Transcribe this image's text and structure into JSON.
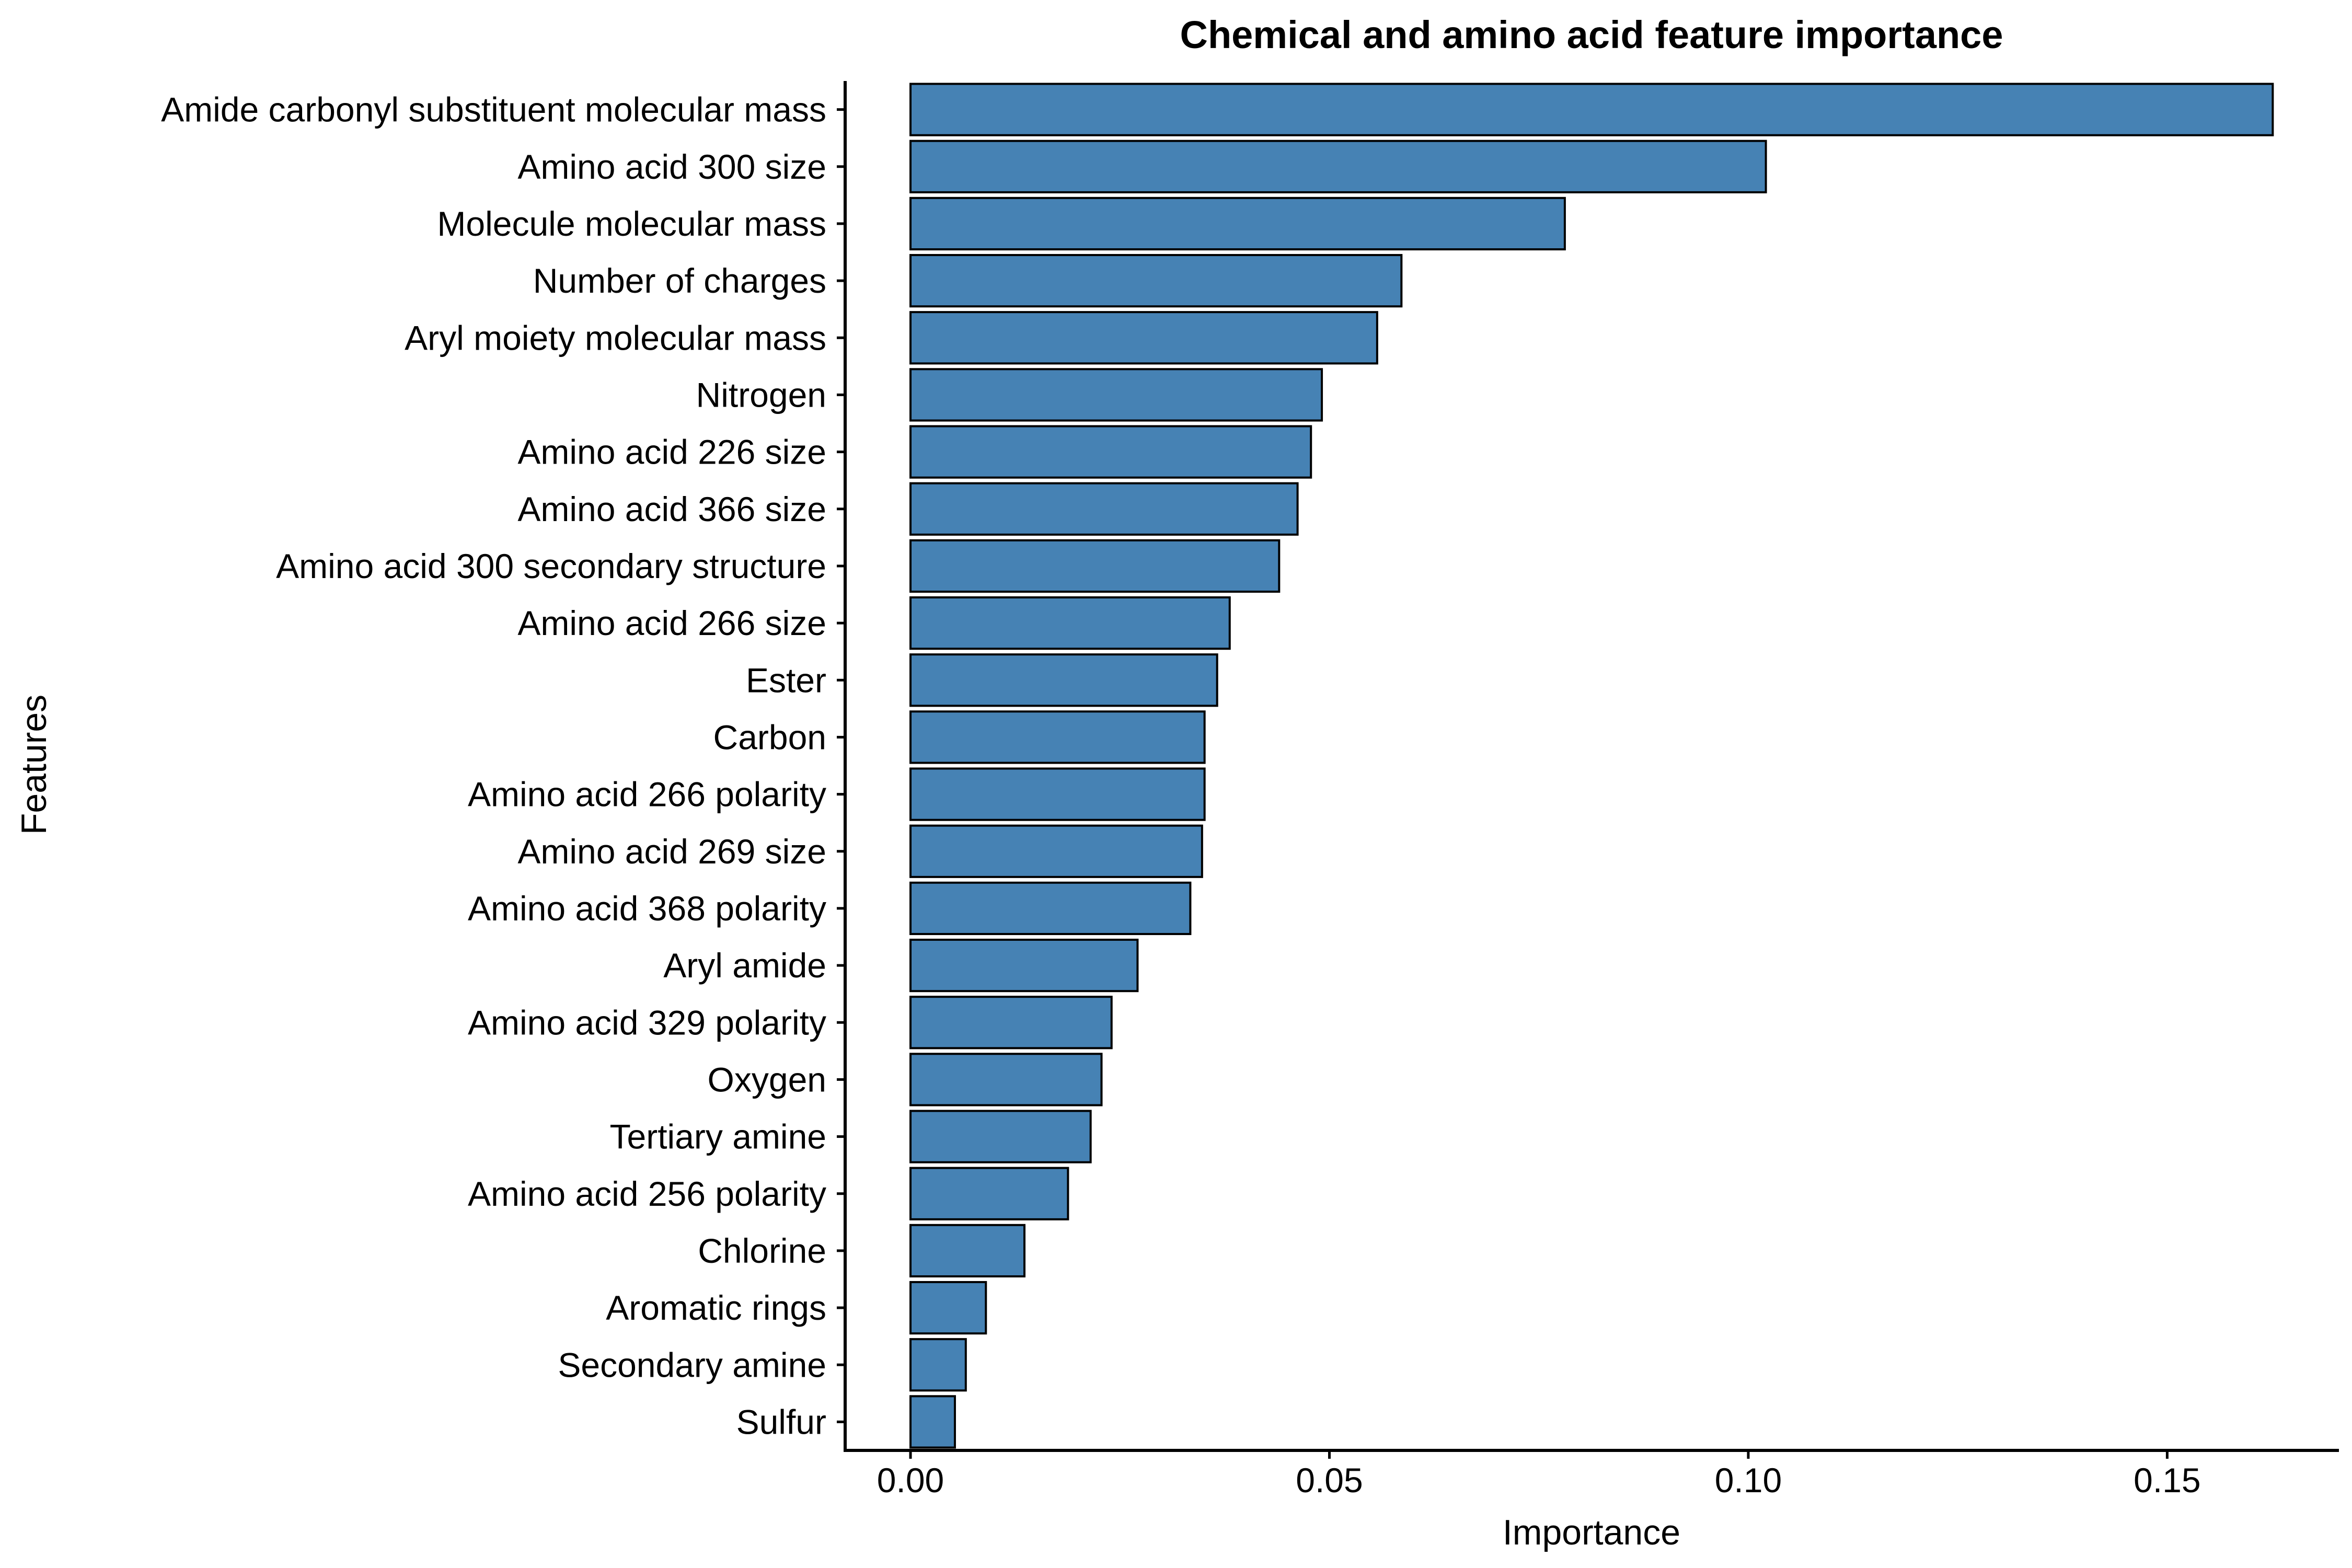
{
  "chart_data": {
    "type": "bar",
    "orientation": "horizontal",
    "title": "Chemical and amino acid feature importance",
    "xlabel": "Importance",
    "ylabel": "Features",
    "xlim": [
      -0.0078,
      0.1705
    ],
    "xticks": [
      0.0,
      0.05,
      0.1,
      0.15
    ],
    "xtick_labels": [
      "0.00",
      "0.05",
      "0.10",
      "0.15"
    ],
    "grid": false,
    "legend": "none",
    "bar_color": "#4682B4",
    "bar_edge_color": "#000000",
    "categories": [
      "Amide carbonyl substituent molecular mass",
      "Amino acid 300 size",
      "Molecule molecular mass",
      "Number of charges",
      "Aryl moiety molecular mass",
      "Nitrogen",
      "Amino acid 226 size",
      "Amino acid 366 size",
      "Amino acid 300 secondary structure",
      "Amino acid 266 size",
      "Ester",
      "Carbon",
      "Amino acid 266 polarity",
      "Amino acid 269 size",
      "Amino acid 368 polarity",
      "Aryl amide",
      "Amino acid 329 polarity",
      "Oxygen",
      "Tertiary amine",
      "Amino acid 256 polarity",
      "Chlorine",
      "Aromatic rings",
      "Secondary amine",
      "Sulfur"
    ],
    "values": [
      0.1626,
      0.1021,
      0.0781,
      0.0586,
      0.0557,
      0.0491,
      0.0478,
      0.0462,
      0.044,
      0.0381,
      0.0366,
      0.0351,
      0.0351,
      0.0348,
      0.0334,
      0.0271,
      0.024,
      0.0228,
      0.0215,
      0.0188,
      0.0136,
      0.009,
      0.0066,
      0.0053
    ]
  }
}
